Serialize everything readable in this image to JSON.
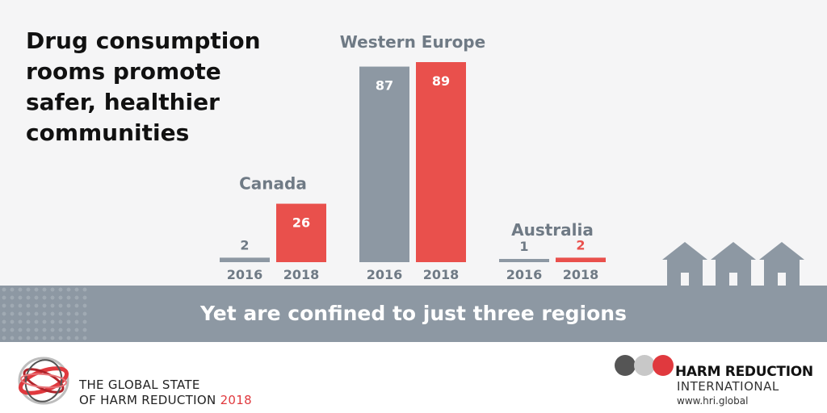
{
  "header": {
    "title": "Drug consumption rooms promote safer, healthier communities"
  },
  "band": {
    "text": "Yet are confined to just three regions"
  },
  "chart_data": {
    "type": "bar",
    "title": "Drug consumption rooms promote safer, healthier communities",
    "groups": [
      "Canada",
      "Western Europe",
      "Australia"
    ],
    "series": [
      {
        "name": "2016",
        "color": "#8d98a3",
        "values": [
          2,
          87,
          1
        ]
      },
      {
        "name": "2018",
        "color": "#e9504c",
        "values": [
          26,
          89,
          2
        ]
      }
    ],
    "ylim": [
      0,
      89
    ],
    "grid": false,
    "legend": "none"
  },
  "footer": {
    "gsh_line1": "THE GLOBAL STATE",
    "gsh_line2": "OF HARM REDUCTION",
    "gsh_year": "2018",
    "hri_name": "HARM REDUCTION",
    "hri_sub": "INTERNATIONAL",
    "hri_url": "www.hri.global"
  },
  "colors": {
    "gray": "#8d98a3",
    "red": "#e9504c",
    "label_gray": "#6f7a85"
  }
}
